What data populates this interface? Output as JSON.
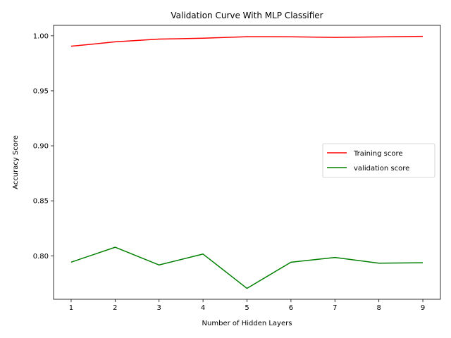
{
  "chart_data": {
    "type": "line",
    "title": "Validation Curve With MLP Classifier",
    "xlabel": "Number of Hidden Layers",
    "ylabel": "Accuracy Score",
    "x": [
      1,
      2,
      3,
      4,
      5,
      6,
      7,
      8,
      9
    ],
    "xlim": [
      0.6,
      9.4
    ],
    "ylim": [
      0.7605,
      1.0095
    ],
    "xticks": [
      1,
      2,
      3,
      4,
      5,
      6,
      7,
      8,
      9
    ],
    "yticks": [
      0.8,
      0.85,
      0.9,
      0.95,
      1.0
    ],
    "ytick_labels": [
      "0.80",
      "0.85",
      "0.90",
      "0.95",
      "1.00"
    ],
    "grid": false,
    "legend_position": "center-right",
    "series": [
      {
        "name": "Training score",
        "color": "#ff0000",
        "values": [
          0.9905,
          0.9945,
          0.997,
          0.9978,
          0.9992,
          0.9991,
          0.9985,
          0.999,
          0.9995
        ]
      },
      {
        "name": "validation score",
        "color": "#008000",
        "values": [
          0.7942,
          0.8078,
          0.7917,
          0.8016,
          0.7704,
          0.7942,
          0.7985,
          0.7933,
          0.7937
        ]
      }
    ]
  }
}
